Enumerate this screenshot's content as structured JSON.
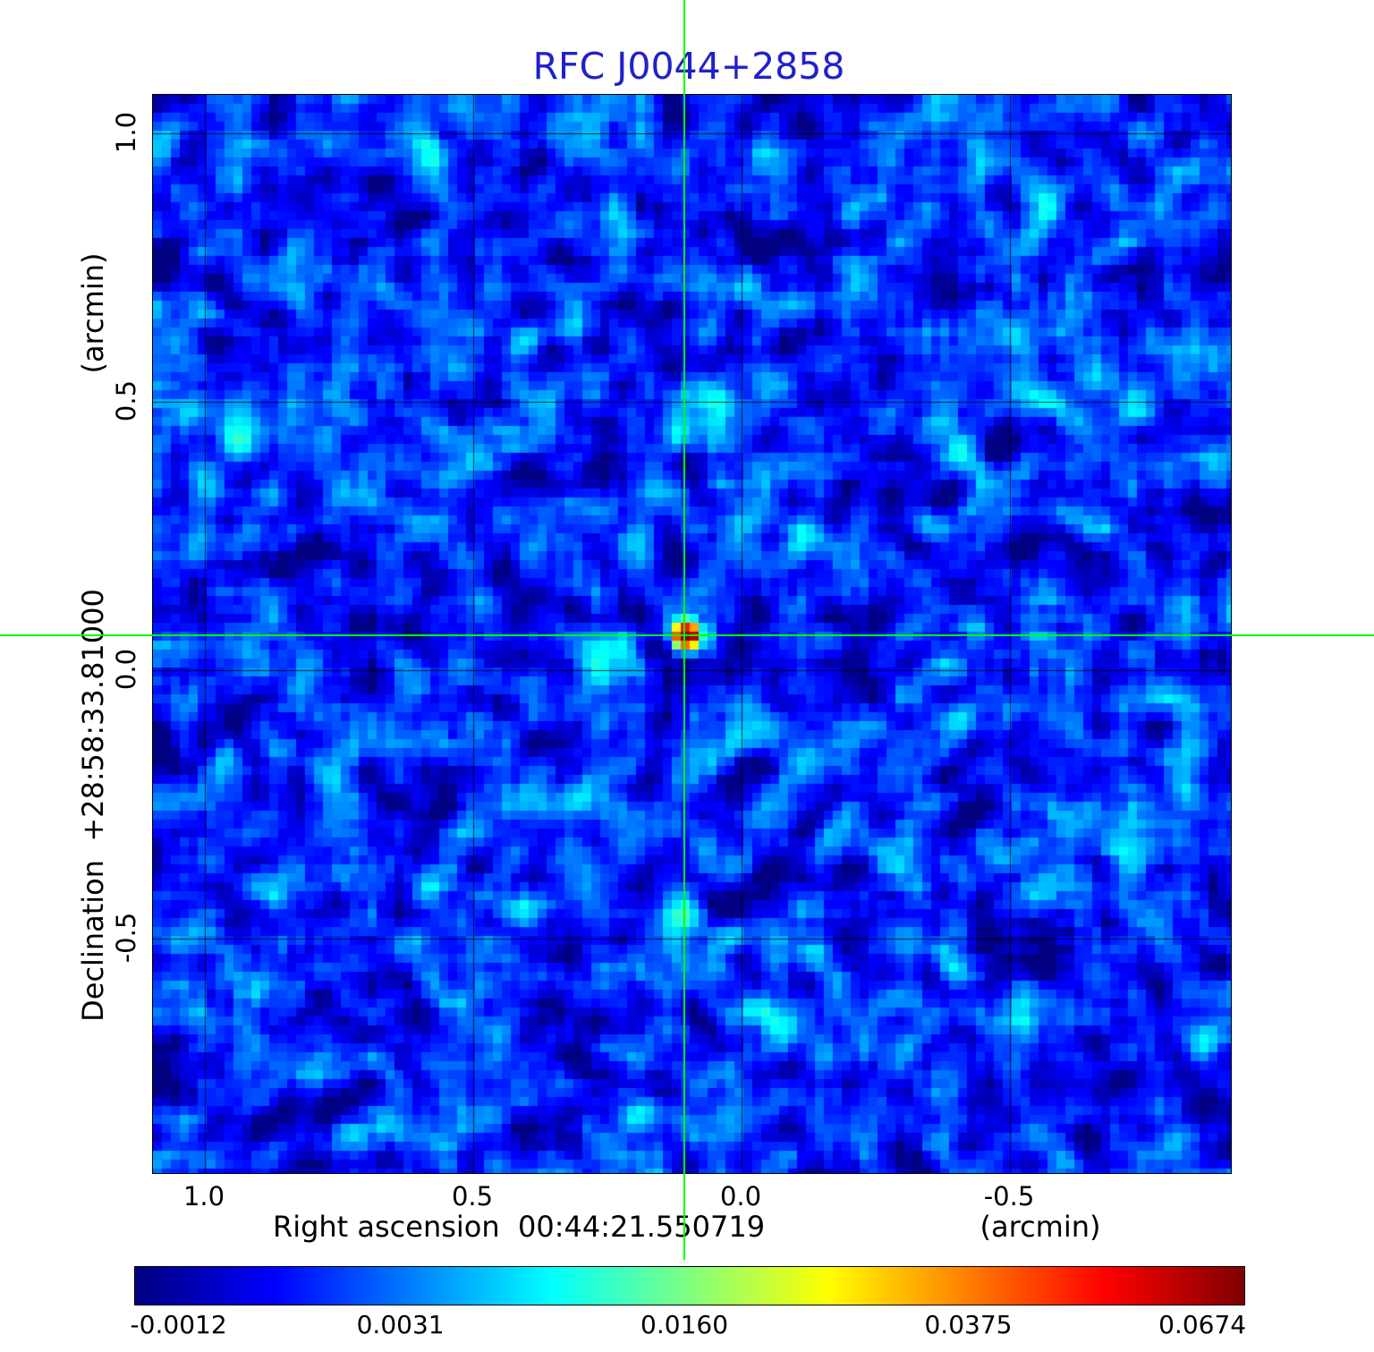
{
  "title": "RFC J0044+2858",
  "colors": {
    "title": "#2020cc",
    "crosshair": "#00ff00",
    "background": "#ffffff"
  },
  "axes": {
    "x": {
      "label": "Right ascension  00:44:21.550719",
      "unit": "(arcmin)",
      "ticks": [
        "1.0",
        "0.5",
        "0.0",
        "-0.5"
      ]
    },
    "y": {
      "label": "Declination  +28:58:33.81000",
      "unit": "(arcmin)",
      "ticks": [
        "1.0",
        "0.5",
        "0.0",
        "-0.5"
      ]
    }
  },
  "colorbar": {
    "ticks": [
      "-0.0012",
      "0.0031",
      "0.0160",
      "0.0375",
      "0.0674"
    ]
  },
  "chart_data": {
    "type": "heatmap",
    "title": "RFC J0044+2858",
    "xlabel": "Right ascension 00:44:21.550719 (arcmin)",
    "ylabel": "Declination +28:58:33.81000 (arcmin)",
    "x_ticks_arcmin": [
      1.0,
      0.5,
      0.0,
      -0.5
    ],
    "y_ticks_arcmin": [
      1.0,
      0.5,
      0.0,
      -0.5
    ],
    "xlim_arcmin": [
      1.097,
      -0.912
    ],
    "ylim_arcmin": [
      -0.937,
      1.072
    ],
    "grid": true,
    "colormap": "jet",
    "intensity_ticks": [
      -0.0012,
      0.0031,
      0.016,
      0.0375,
      0.0674
    ],
    "intensity_min": -0.0012,
    "intensity_max": 0.0674,
    "peak_source": {
      "x_arcmin": 0.105,
      "y_arcmin": 0.063,
      "peak_intensity": 0.0674
    },
    "crosshair_arcmin": {
      "x": 0.105,
      "y": 0.063
    },
    "noise_seed": 20240044
  }
}
